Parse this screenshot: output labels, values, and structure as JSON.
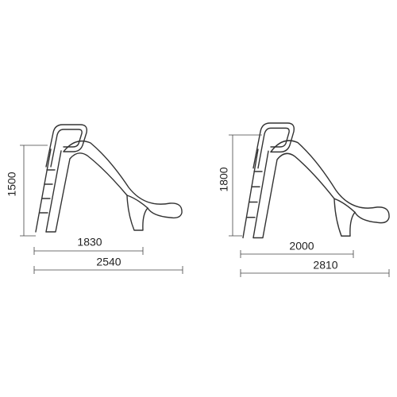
{
  "slides": [
    {
      "height": "1500",
      "length_inner": "1830",
      "length_total": "2540"
    },
    {
      "height": "1800",
      "length_inner": "2000",
      "length_total": "2810"
    }
  ]
}
